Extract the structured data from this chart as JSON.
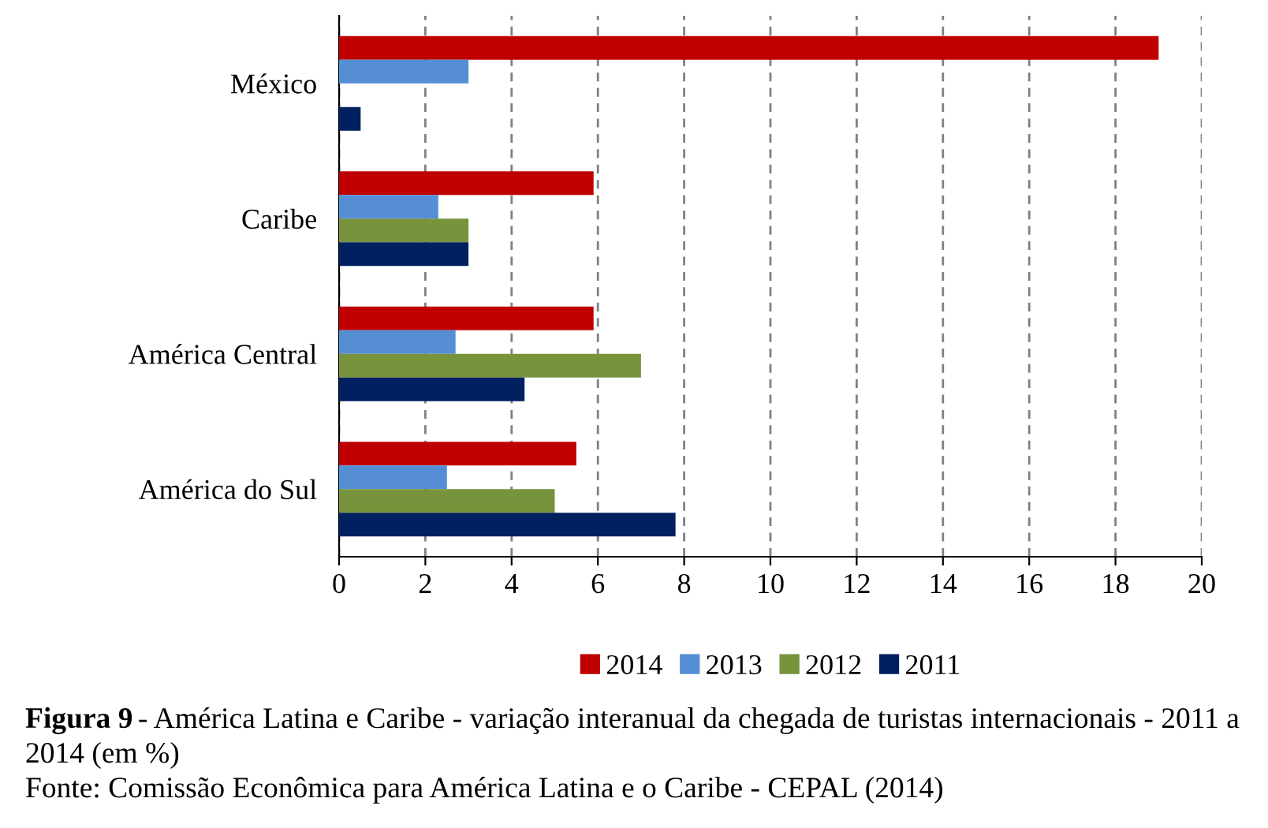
{
  "chart_data": {
    "type": "bar",
    "orientation": "horizontal",
    "categories": [
      "México",
      "Caribe",
      "América Central",
      "América do Sul"
    ],
    "series": [
      {
        "name": "2014",
        "color": "#c00000",
        "values": [
          19,
          5.9,
          5.9,
          5.5
        ]
      },
      {
        "name": "2013",
        "color": "#558ed5",
        "values": [
          3,
          2.3,
          2.7,
          2.5
        ]
      },
      {
        "name": "2012",
        "color": "#77933c",
        "values": [
          null,
          3,
          7,
          5
        ]
      },
      {
        "name": "2011",
        "color": "#002060",
        "values": [
          0.5,
          3,
          4.3,
          7.8
        ]
      }
    ],
    "xlim": [
      0,
      20
    ],
    "xticks": [
      0,
      2,
      4,
      6,
      8,
      10,
      12,
      14,
      16,
      18,
      20
    ],
    "grid": "x",
    "legend": "bottom",
    "annotations": [
      "Figura 9",
      "- América Latina e Caribe - variação interanual da chegada de turistas internacionais - 2011 a 2014 (em %)",
      "Fonte: Comissão Econômica para América Latina e o Caribe - CEPAL (2014)"
    ]
  }
}
